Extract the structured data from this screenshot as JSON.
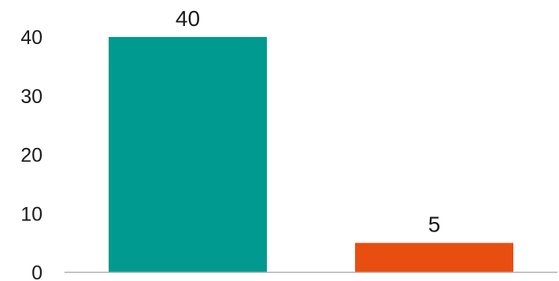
{
  "chart_data": {
    "type": "bar",
    "categories": [
      "",
      ""
    ],
    "values": [
      40,
      5
    ],
    "data_labels": [
      "40",
      "5"
    ],
    "colors": [
      "#009A91",
      "#E84E10"
    ],
    "title": "",
    "xlabel": "",
    "ylabel": "",
    "ylim": [
      0,
      40
    ],
    "yticks": [
      0,
      10,
      20,
      30,
      40
    ],
    "ytick_labels": [
      "0",
      "10",
      "20",
      "30",
      "40"
    ],
    "grid": false,
    "legend": "none"
  }
}
